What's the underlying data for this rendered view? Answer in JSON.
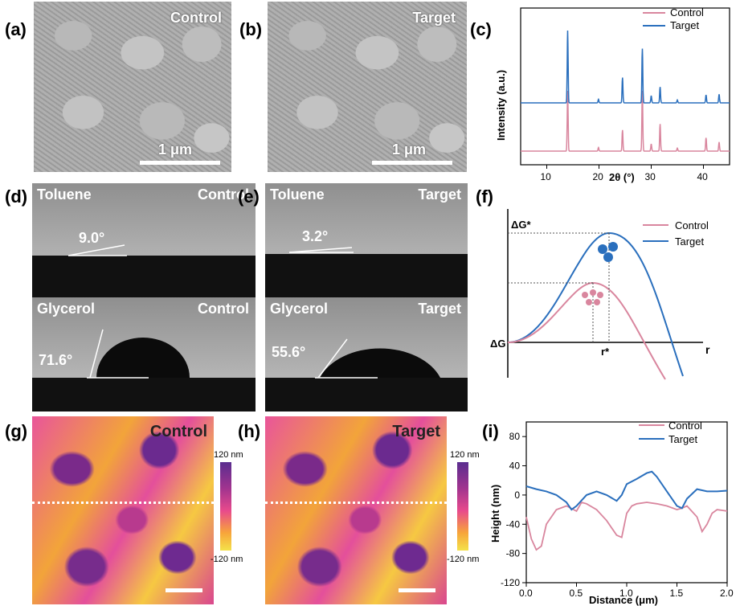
{
  "labels": {
    "a": "(a)",
    "b": "(b)",
    "c": "(c)",
    "d": "(d)",
    "e": "(e)",
    "f": "(f)",
    "g": "(g)",
    "h": "(h)",
    "i": "(i)"
  },
  "sem": {
    "a": {
      "title": "Control",
      "scale": "1 μm"
    },
    "b": {
      "title": "Target",
      "scale": "1 μm"
    }
  },
  "contact": {
    "d": {
      "top_solvent": "Toluene",
      "top_tag": "Control",
      "top_angle": "9.0°",
      "bottom_solvent": "Glycerol",
      "bottom_tag": "Control",
      "bottom_angle": "71.6°"
    },
    "e": {
      "top_solvent": "Toluene",
      "top_tag": "Target",
      "top_angle": "3.2°",
      "bottom_solvent": "Glycerol",
      "bottom_tag": "Target",
      "bottom_angle": "55.6°"
    }
  },
  "afm": {
    "g": {
      "title": "Control",
      "cbar_top": "120 nm",
      "cbar_bottom": "-120 nm"
    },
    "h": {
      "title": "Target",
      "cbar_top": "120 nm",
      "cbar_bottom": "-120 nm"
    }
  },
  "colors": {
    "control": "#d9869e",
    "target": "#2a6fbd"
  },
  "chart_data": [
    {
      "panel": "c",
      "type": "line",
      "xlabel": "2θ (°)",
      "ylabel": "Intensity (a.u.)",
      "xlim": [
        5,
        45
      ],
      "xticks": [
        10,
        20,
        30,
        40
      ],
      "series": [
        {
          "name": "Control",
          "peaks": [
            [
              14.0,
              1.0
            ],
            [
              19.9,
              0.06
            ],
            [
              24.5,
              0.35
            ],
            [
              28.3,
              1.0
            ],
            [
              30.0,
              0.12
            ],
            [
              31.7,
              0.45
            ],
            [
              35.0,
              0.05
            ],
            [
              40.5,
              0.22
            ],
            [
              43.0,
              0.15
            ]
          ]
        },
        {
          "name": "Target",
          "peaks": [
            [
              14.0,
              1.0
            ],
            [
              19.9,
              0.05
            ],
            [
              24.5,
              0.35
            ],
            [
              28.3,
              0.75
            ],
            [
              30.0,
              0.1
            ],
            [
              31.7,
              0.22
            ],
            [
              35.0,
              0.04
            ],
            [
              40.5,
              0.11
            ],
            [
              43.0,
              0.12
            ]
          ]
        }
      ]
    },
    {
      "panel": "f",
      "type": "line",
      "xlabel": "r",
      "ylabel": "ΔG",
      "annotations": [
        "ΔG*",
        "r*"
      ],
      "series": [
        {
          "name": "Control",
          "peak_r": 0.42,
          "peak_g": 0.45
        },
        {
          "name": "Target",
          "peak_r": 0.5,
          "peak_g": 0.78
        }
      ]
    },
    {
      "panel": "i",
      "type": "line",
      "xlabel": "Distance (μm)",
      "ylabel": "Height (nm)",
      "xlim": [
        0,
        2.0
      ],
      "ylim": [
        -120,
        100
      ],
      "xticks": [
        0.0,
        0.5,
        1.0,
        1.5,
        2.0
      ],
      "yticks": [
        -120,
        -80,
        -40,
        0,
        40,
        80
      ],
      "series": [
        {
          "name": "Control",
          "x": [
            0.0,
            0.05,
            0.1,
            0.15,
            0.2,
            0.3,
            0.4,
            0.5,
            0.55,
            0.6,
            0.7,
            0.8,
            0.9,
            0.95,
            1.0,
            1.05,
            1.1,
            1.2,
            1.3,
            1.4,
            1.5,
            1.55,
            1.6,
            1.7,
            1.75,
            1.8,
            1.85,
            1.9,
            2.0
          ],
          "y": [
            -30,
            -60,
            -75,
            -70,
            -40,
            -20,
            -15,
            -22,
            -10,
            -12,
            -20,
            -35,
            -55,
            -58,
            -25,
            -15,
            -12,
            -10,
            -12,
            -15,
            -20,
            -18,
            -15,
            -30,
            -50,
            -40,
            -25,
            -20,
            -22
          ]
        },
        {
          "name": "Target",
          "x": [
            0.0,
            0.1,
            0.2,
            0.3,
            0.4,
            0.45,
            0.5,
            0.6,
            0.7,
            0.8,
            0.9,
            0.95,
            1.0,
            1.1,
            1.2,
            1.25,
            1.3,
            1.4,
            1.5,
            1.55,
            1.6,
            1.7,
            1.8,
            1.9,
            2.0
          ],
          "y": [
            12,
            8,
            5,
            0,
            -10,
            -20,
            -15,
            0,
            5,
            0,
            -8,
            0,
            15,
            22,
            30,
            32,
            25,
            5,
            -15,
            -18,
            -5,
            8,
            5,
            5,
            6
          ]
        }
      ]
    }
  ]
}
